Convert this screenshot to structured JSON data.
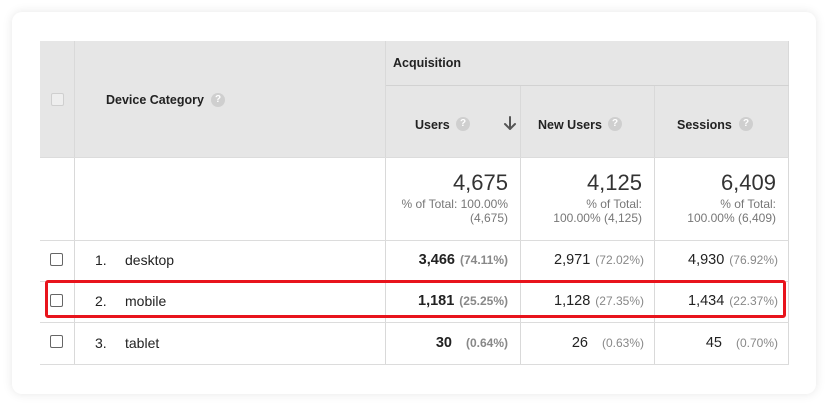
{
  "header": {
    "device_category": "Device Category",
    "acquisition": "Acquisition",
    "help_glyph": "?",
    "columns": [
      {
        "label": "Users",
        "sorted": "descending"
      },
      {
        "label": "New Users"
      },
      {
        "label": "Sessions"
      }
    ]
  },
  "totals": [
    {
      "value": "4,675",
      "line1": "% of Total: 100.00%",
      "line2": "(4,675)"
    },
    {
      "value": "4,125",
      "line1": "% of Total:",
      "line2": "100.00% (4,125)"
    },
    {
      "value": "6,409",
      "line1": "% of Total:",
      "line2": "100.00% (6,409)"
    }
  ],
  "rows": [
    {
      "num": "1.",
      "label": "desktop",
      "users": "3,466",
      "users_pct": "(74.11%)",
      "new_users": "2,971",
      "new_users_pct": "(72.02%)",
      "sessions": "4,930",
      "sessions_pct": "(76.92%)"
    },
    {
      "num": "2.",
      "label": "mobile",
      "users": "1,181",
      "users_pct": "(25.25%)",
      "new_users": "1,128",
      "new_users_pct": "(27.35%)",
      "sessions": "1,434",
      "sessions_pct": "(22.37%)",
      "highlighted": true
    },
    {
      "num": "3.",
      "label": "tablet",
      "users": "30",
      "users_pct": "(0.64%)",
      "new_users": "26",
      "new_users_pct": "(0.63%)",
      "sessions": "45",
      "sessions_pct": "(0.70%)"
    }
  ],
  "colors": {
    "header_bg": "#e6e6e6",
    "highlight_border": "#e8141c",
    "help_icon": "#cfcfcf"
  }
}
